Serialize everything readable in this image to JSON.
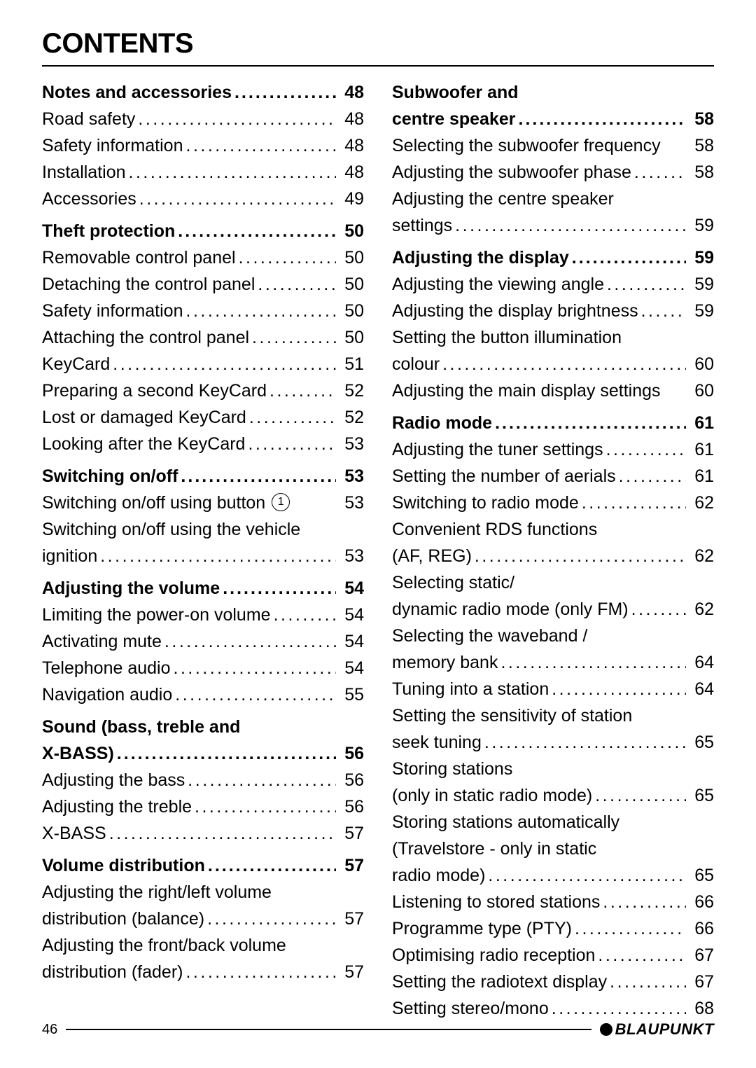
{
  "title": "CONTENTS",
  "page_number": "46",
  "brand": "BLAUPUNKT",
  "left_column": [
    {
      "section": [
        {
          "label": "Notes and accessories",
          "page": "48",
          "heading": true
        },
        {
          "label": "Road safety",
          "page": "48"
        },
        {
          "label": "Safety information",
          "page": "48"
        },
        {
          "label": "Installation",
          "page": "48"
        },
        {
          "label": "Accessories",
          "page": "49"
        }
      ]
    },
    {
      "section": [
        {
          "label": "Theft protection",
          "page": "50",
          "heading": true
        },
        {
          "label": "Removable control panel",
          "page": "50"
        },
        {
          "label": "Detaching the control panel",
          "page": "50"
        },
        {
          "label": "Safety information",
          "page": "50"
        },
        {
          "label": "Attaching the control panel",
          "page": "50"
        },
        {
          "label": "KeyCard",
          "page": "51"
        },
        {
          "label": "Preparing a second KeyCard",
          "page": "52"
        },
        {
          "label": "Lost or damaged KeyCard",
          "page": "52"
        },
        {
          "label": "Looking after the KeyCard",
          "page": "53"
        }
      ]
    },
    {
      "section": [
        {
          "label": "Switching on/off",
          "page": "53",
          "heading": true
        },
        {
          "label": "Switching on/off using button",
          "page": "53",
          "circled": "1",
          "nodots": true
        },
        {
          "label": "Switching on/off using the vehicle",
          "cont": true
        },
        {
          "label": "ignition",
          "page": "53"
        }
      ]
    },
    {
      "section": [
        {
          "label": "Adjusting the volume",
          "page": "54",
          "heading": true
        },
        {
          "label": "Limiting the power-on volume",
          "page": "54"
        },
        {
          "label": "Activating mute",
          "page": "54"
        },
        {
          "label": "Telephone audio",
          "page": "54"
        },
        {
          "label": "Navigation audio",
          "page": "55"
        }
      ]
    },
    {
      "section": [
        {
          "label": "Sound (bass, treble and",
          "heading": true,
          "cont": true
        },
        {
          "label": "X-BASS)",
          "page": "56",
          "heading": true
        },
        {
          "label": "Adjusting the bass",
          "page": "56"
        },
        {
          "label": "Adjusting the treble",
          "page": "56"
        },
        {
          "label": "X-BASS",
          "page": "57"
        }
      ]
    },
    {
      "section": [
        {
          "label": "Volume distribution",
          "page": "57",
          "heading": true
        },
        {
          "label": "Adjusting the right/left volume",
          "cont": true
        },
        {
          "label": "distribution (balance)",
          "page": "57"
        },
        {
          "label": "Adjusting the front/back volume",
          "cont": true
        },
        {
          "label": "distribution (fader)",
          "page": "57"
        }
      ]
    }
  ],
  "right_column": [
    {
      "section": [
        {
          "label": "Subwoofer and",
          "heading": true,
          "cont": true
        },
        {
          "label": "centre speaker",
          "page": "58",
          "heading": true
        },
        {
          "label": "Selecting the subwoofer frequency",
          "page": "58",
          "nodots": true
        },
        {
          "label": "Adjusting the subwoofer phase",
          "page": "58"
        },
        {
          "label": "Adjusting the centre speaker",
          "cont": true
        },
        {
          "label": "settings",
          "page": "59"
        }
      ]
    },
    {
      "section": [
        {
          "label": "Adjusting the display",
          "page": "59",
          "heading": true
        },
        {
          "label": "Adjusting the viewing angle",
          "page": "59"
        },
        {
          "label": "Adjusting the display brightness",
          "page": "59"
        },
        {
          "label": "Setting the button illumination",
          "cont": true
        },
        {
          "label": "colour",
          "page": "60"
        },
        {
          "label": "Adjusting the main display settings",
          "page": "60",
          "nodots": true
        }
      ]
    },
    {
      "section": [
        {
          "label": "Radio mode",
          "page": "61",
          "heading": true
        },
        {
          "label": "Adjusting the tuner settings",
          "page": "61"
        },
        {
          "label": "Setting the number of aerials",
          "page": "61"
        },
        {
          "label": "Switching to radio mode",
          "page": "62"
        },
        {
          "label": "Convenient RDS functions",
          "cont": true
        },
        {
          "label": "(AF, REG)",
          "page": "62"
        },
        {
          "label": "Selecting static/",
          "cont": true
        },
        {
          "label": "dynamic radio mode (only FM)",
          "page": "62"
        },
        {
          "label": "Selecting the waveband /",
          "cont": true
        },
        {
          "label": "memory bank",
          "page": "64"
        },
        {
          "label": "Tuning into a station",
          "page": "64"
        },
        {
          "label": "Setting the sensitivity of station",
          "cont": true
        },
        {
          "label": "seek tuning",
          "page": "65"
        },
        {
          "label": "Storing stations",
          "cont": true
        },
        {
          "label": "(only in static radio mode)",
          "page": "65"
        },
        {
          "label": "Storing stations automatically",
          "cont": true
        },
        {
          "label": "(Travelstore - only in static",
          "cont": true
        },
        {
          "label": "radio mode)",
          "page": "65"
        },
        {
          "label": "Listening to stored stations",
          "page": "66"
        },
        {
          "label": "Programme type (PTY)",
          "page": "66"
        },
        {
          "label": "Optimising radio reception",
          "page": "67"
        },
        {
          "label": "Setting the radiotext display",
          "page": "67"
        },
        {
          "label": "Setting stereo/mono",
          "page": "68"
        }
      ]
    }
  ]
}
